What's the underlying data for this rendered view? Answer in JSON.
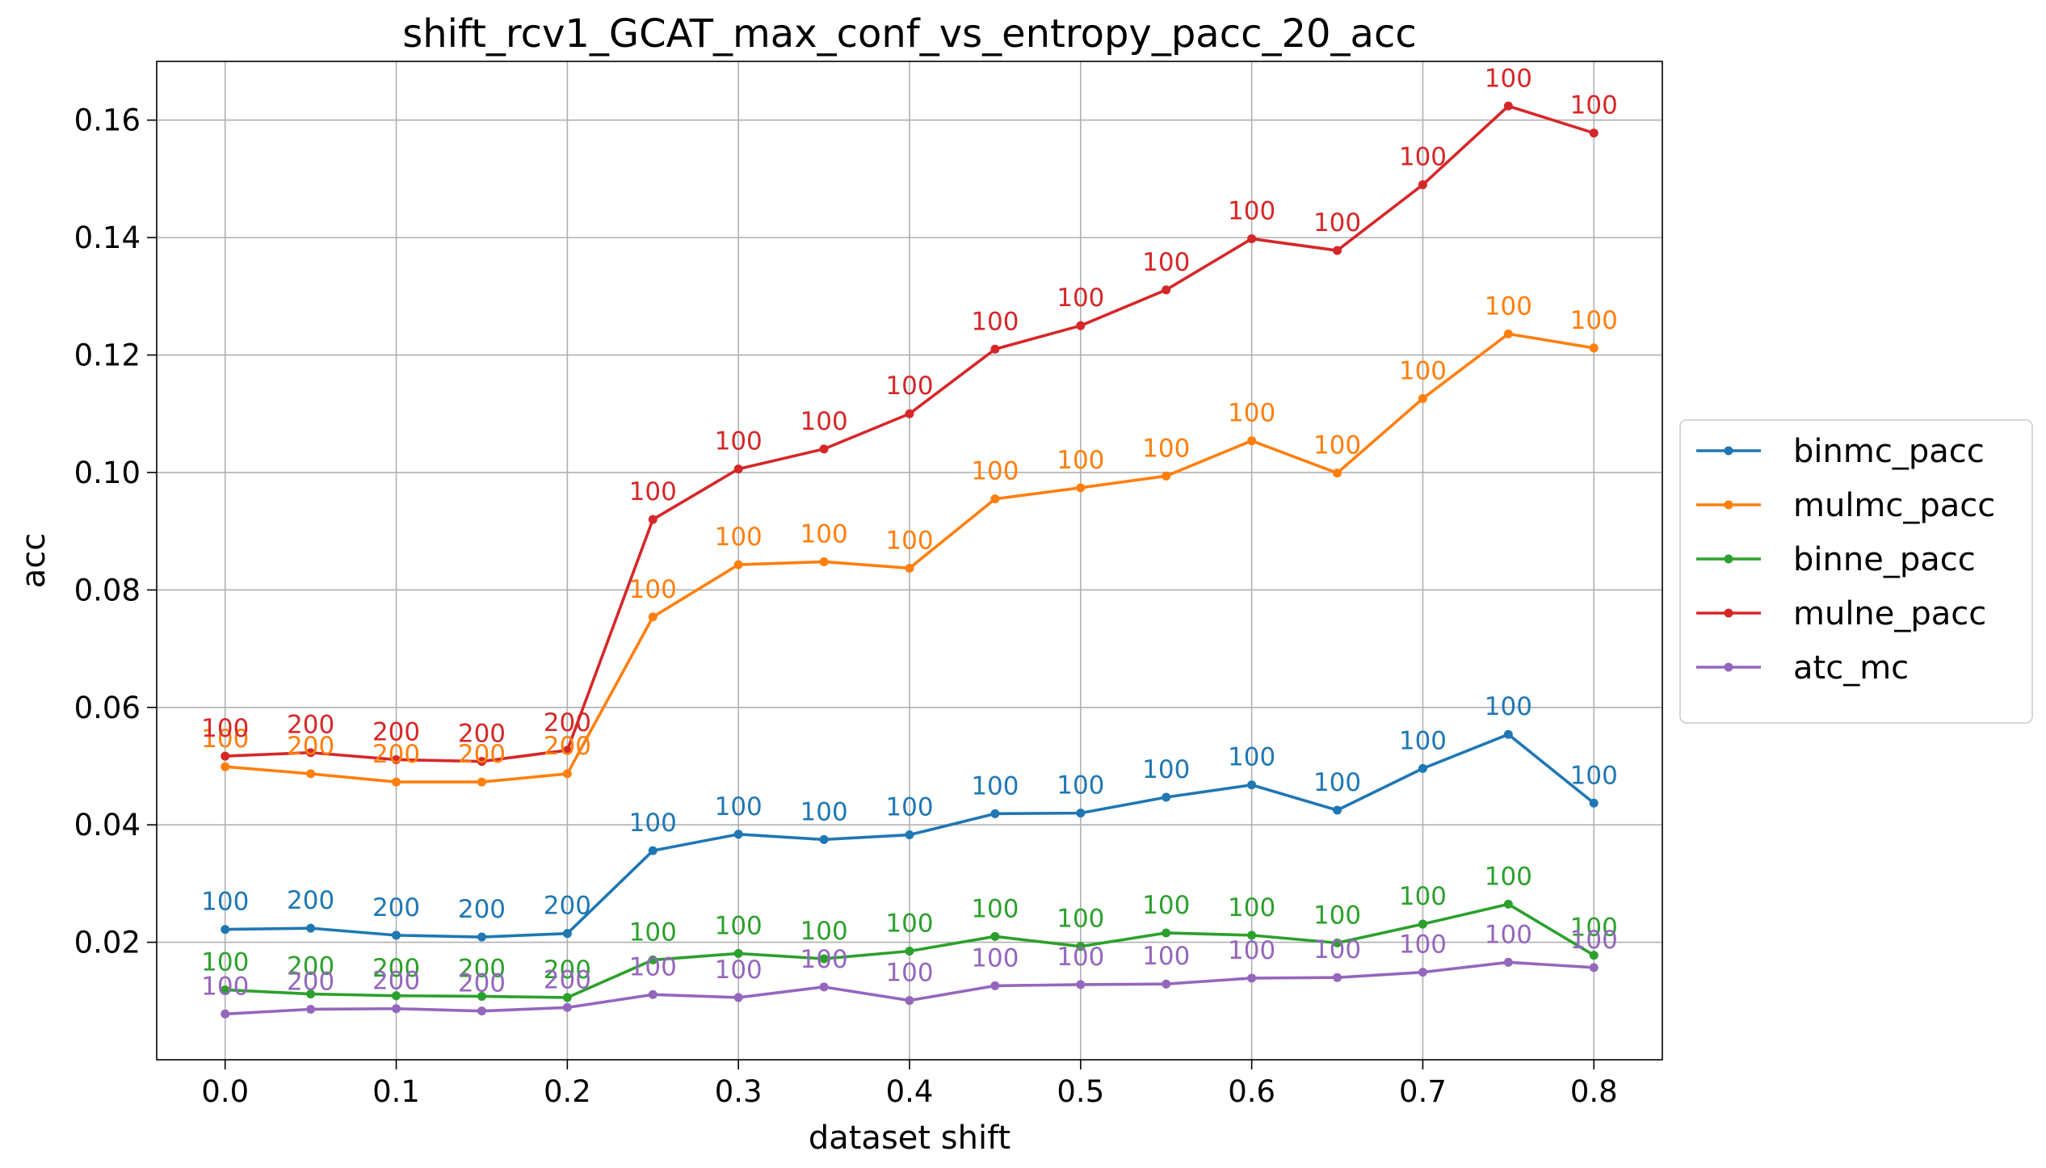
{
  "chart_data": {
    "type": "line",
    "title": "shift_rcv1_GCAT_max_conf_vs_entropy_pacc_20_acc",
    "xlabel": "dataset shift",
    "ylabel": "acc",
    "xlim": [
      -0.04,
      0.84
    ],
    "ylim": [
      0.0,
      0.17
    ],
    "xticks": [
      0.0,
      0.1,
      0.2,
      0.3,
      0.4,
      0.5,
      0.6,
      0.7,
      0.8
    ],
    "xtick_labels": [
      "0.0",
      "0.1",
      "0.2",
      "0.3",
      "0.4",
      "0.5",
      "0.6",
      "0.7",
      "0.8"
    ],
    "yticks": [
      0.02,
      0.04,
      0.06,
      0.08,
      0.1,
      0.12,
      0.14,
      0.16
    ],
    "ytick_labels": [
      "0.02",
      "0.04",
      "0.06",
      "0.08",
      "0.10",
      "0.12",
      "0.14",
      "0.16"
    ],
    "grid": true,
    "legend_position": "right",
    "x": [
      0.0,
      0.05,
      0.1,
      0.15,
      0.2,
      0.25,
      0.3,
      0.35,
      0.4,
      0.45,
      0.5,
      0.55,
      0.6,
      0.65,
      0.7,
      0.75,
      0.8
    ],
    "series": [
      {
        "name": "binmc_pacc",
        "color": "#1f77b4",
        "values": [
          0.0222,
          0.0224,
          0.0212,
          0.0209,
          0.0215,
          0.0356,
          0.0384,
          0.0375,
          0.0383,
          0.0419,
          0.042,
          0.0447,
          0.0468,
          0.0425,
          0.0496,
          0.0554,
          0.0437
        ],
        "labels": [
          "100",
          "200",
          "200",
          "200",
          "200",
          "100",
          "100",
          "100",
          "100",
          "100",
          "100",
          "100",
          "100",
          "100",
          "100",
          "100",
          "100"
        ]
      },
      {
        "name": "mulmc_pacc",
        "color": "#ff7f0e",
        "values": [
          0.0499,
          0.0487,
          0.0473,
          0.0473,
          0.0487,
          0.0754,
          0.0843,
          0.0848,
          0.0837,
          0.0955,
          0.0974,
          0.0994,
          0.1054,
          0.0999,
          0.1126,
          0.1236,
          0.1212
        ],
        "labels": [
          "100",
          "200",
          "200",
          "200",
          "200",
          "100",
          "100",
          "100",
          "100",
          "100",
          "100",
          "100",
          "100",
          "100",
          "100",
          "100",
          "100"
        ]
      },
      {
        "name": "binne_pacc",
        "color": "#2ca02c",
        "values": [
          0.0119,
          0.0112,
          0.0109,
          0.0108,
          0.0106,
          0.017,
          0.0181,
          0.0172,
          0.0185,
          0.021,
          0.0193,
          0.0216,
          0.0212,
          0.0199,
          0.0231,
          0.0265,
          0.0178
        ],
        "labels": [
          "100",
          "200",
          "200",
          "200",
          "200",
          "100",
          "100",
          "100",
          "100",
          "100",
          "100",
          "100",
          "100",
          "100",
          "100",
          "100",
          "100"
        ]
      },
      {
        "name": "mulne_pacc",
        "color": "#d62728",
        "values": [
          0.0517,
          0.0523,
          0.0511,
          0.0508,
          0.0527,
          0.092,
          0.1006,
          0.104,
          0.11,
          0.121,
          0.125,
          0.1311,
          0.1398,
          0.1378,
          0.149,
          0.1624,
          0.1578
        ],
        "labels": [
          "100",
          "200",
          "200",
          "200",
          "200",
          "100",
          "100",
          "100",
          "100",
          "100",
          "100",
          "100",
          "100",
          "100",
          "100",
          "100",
          "100"
        ]
      },
      {
        "name": "atc_mc",
        "color": "#9467bd",
        "values": [
          0.0078,
          0.0086,
          0.0087,
          0.0083,
          0.0089,
          0.0111,
          0.0106,
          0.0124,
          0.0101,
          0.0126,
          0.0128,
          0.0129,
          0.0139,
          0.014,
          0.0149,
          0.0166,
          0.0157
        ],
        "labels": [
          "100",
          "200",
          "200",
          "200",
          "200",
          "100",
          "100",
          "100",
          "100",
          "100",
          "100",
          "100",
          "100",
          "100",
          "100",
          "100",
          "100"
        ]
      }
    ]
  }
}
